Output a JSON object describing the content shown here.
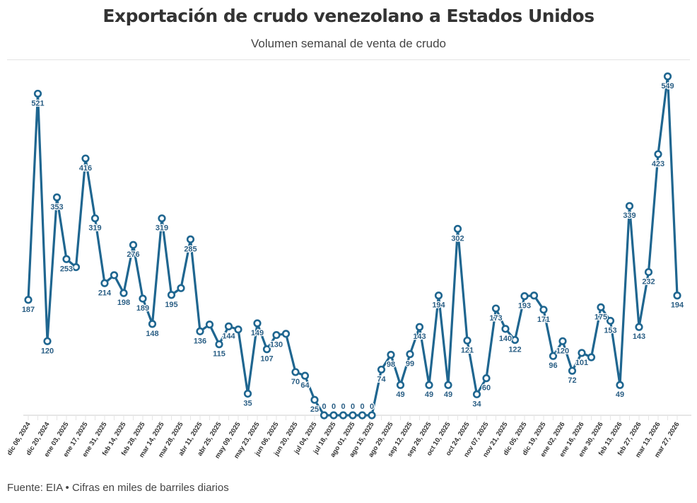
{
  "title": "Exportación de crudo venezolano a Estados Unidos",
  "subtitle": "Volumen semanal de venta de crudo",
  "source": "Fuente: EIA • Cifras en miles de barriles diarios",
  "colors": {
    "line": "#1f6690",
    "label": "#2b5f85",
    "axis": "#e6e6e6"
  },
  "chart_data": {
    "type": "line",
    "title": "Exportación de crudo venezolano a Estados Unidos",
    "subtitle": "Volumen semanal de venta de crudo",
    "xlabel": "",
    "ylabel": "",
    "ylim": [
      0,
      549
    ],
    "grid": false,
    "legend": "none",
    "x_tick_labels": [
      "dic 06, 2024",
      "dic 20, 2024",
      "ene 03, 2025",
      "ene 17, 2025",
      "ene 31, 2025",
      "feb 14, 2025",
      "feb 28, 2025",
      "mar 14, 2025",
      "mar 28, 2025",
      "abr 11, 2025",
      "abr 25, 2025",
      "may 09, 2025",
      "may 23, 2025",
      "jun 06, 2025",
      "jun 20, 2025",
      "jul 04, 2025",
      "jul 18, 2025",
      "ago 01, 2025",
      "ago 15, 2025",
      "ago 29, 2025",
      "sep 12, 2025",
      "sep 26, 2025",
      "oct 10, 2025",
      "oct 24, 2025",
      "nov 07, 2025",
      "nov 21, 2025",
      "dic 05, 2025",
      "dic 19, 2025",
      "ene 02, 2026",
      "ene 16, 2026",
      "ene 30, 2026",
      "feb 13, 2026",
      "feb 27, 2026",
      "mar 13, 2026",
      "mar 27, 2026"
    ],
    "values": [
      187,
      521,
      120,
      353,
      253,
      240,
      416,
      319,
      214,
      227,
      198,
      276,
      189,
      148,
      319,
      195,
      206,
      285,
      136,
      147,
      115,
      144,
      139,
      35,
      149,
      107,
      130,
      132,
      70,
      64,
      25,
      0,
      0,
      0,
      0,
      0,
      0,
      74,
      98,
      49,
      99,
      143,
      49,
      194,
      49,
      302,
      121,
      34,
      60,
      173,
      140,
      122,
      193,
      194,
      171,
      96,
      120,
      72,
      101,
      94,
      175,
      153,
      49,
      339,
      143,
      232,
      423,
      549,
      194
    ],
    "labeled": [
      true,
      true,
      true,
      true,
      true,
      false,
      true,
      true,
      true,
      false,
      true,
      true,
      true,
      true,
      true,
      true,
      false,
      true,
      true,
      false,
      true,
      true,
      false,
      true,
      true,
      true,
      true,
      false,
      true,
      true,
      true,
      true,
      true,
      true,
      true,
      true,
      true,
      true,
      true,
      true,
      true,
      true,
      true,
      true,
      true,
      true,
      true,
      true,
      true,
      true,
      true,
      true,
      true,
      false,
      true,
      true,
      true,
      true,
      true,
      false,
      true,
      true,
      true,
      true,
      true,
      true,
      true,
      true,
      true
    ]
  }
}
